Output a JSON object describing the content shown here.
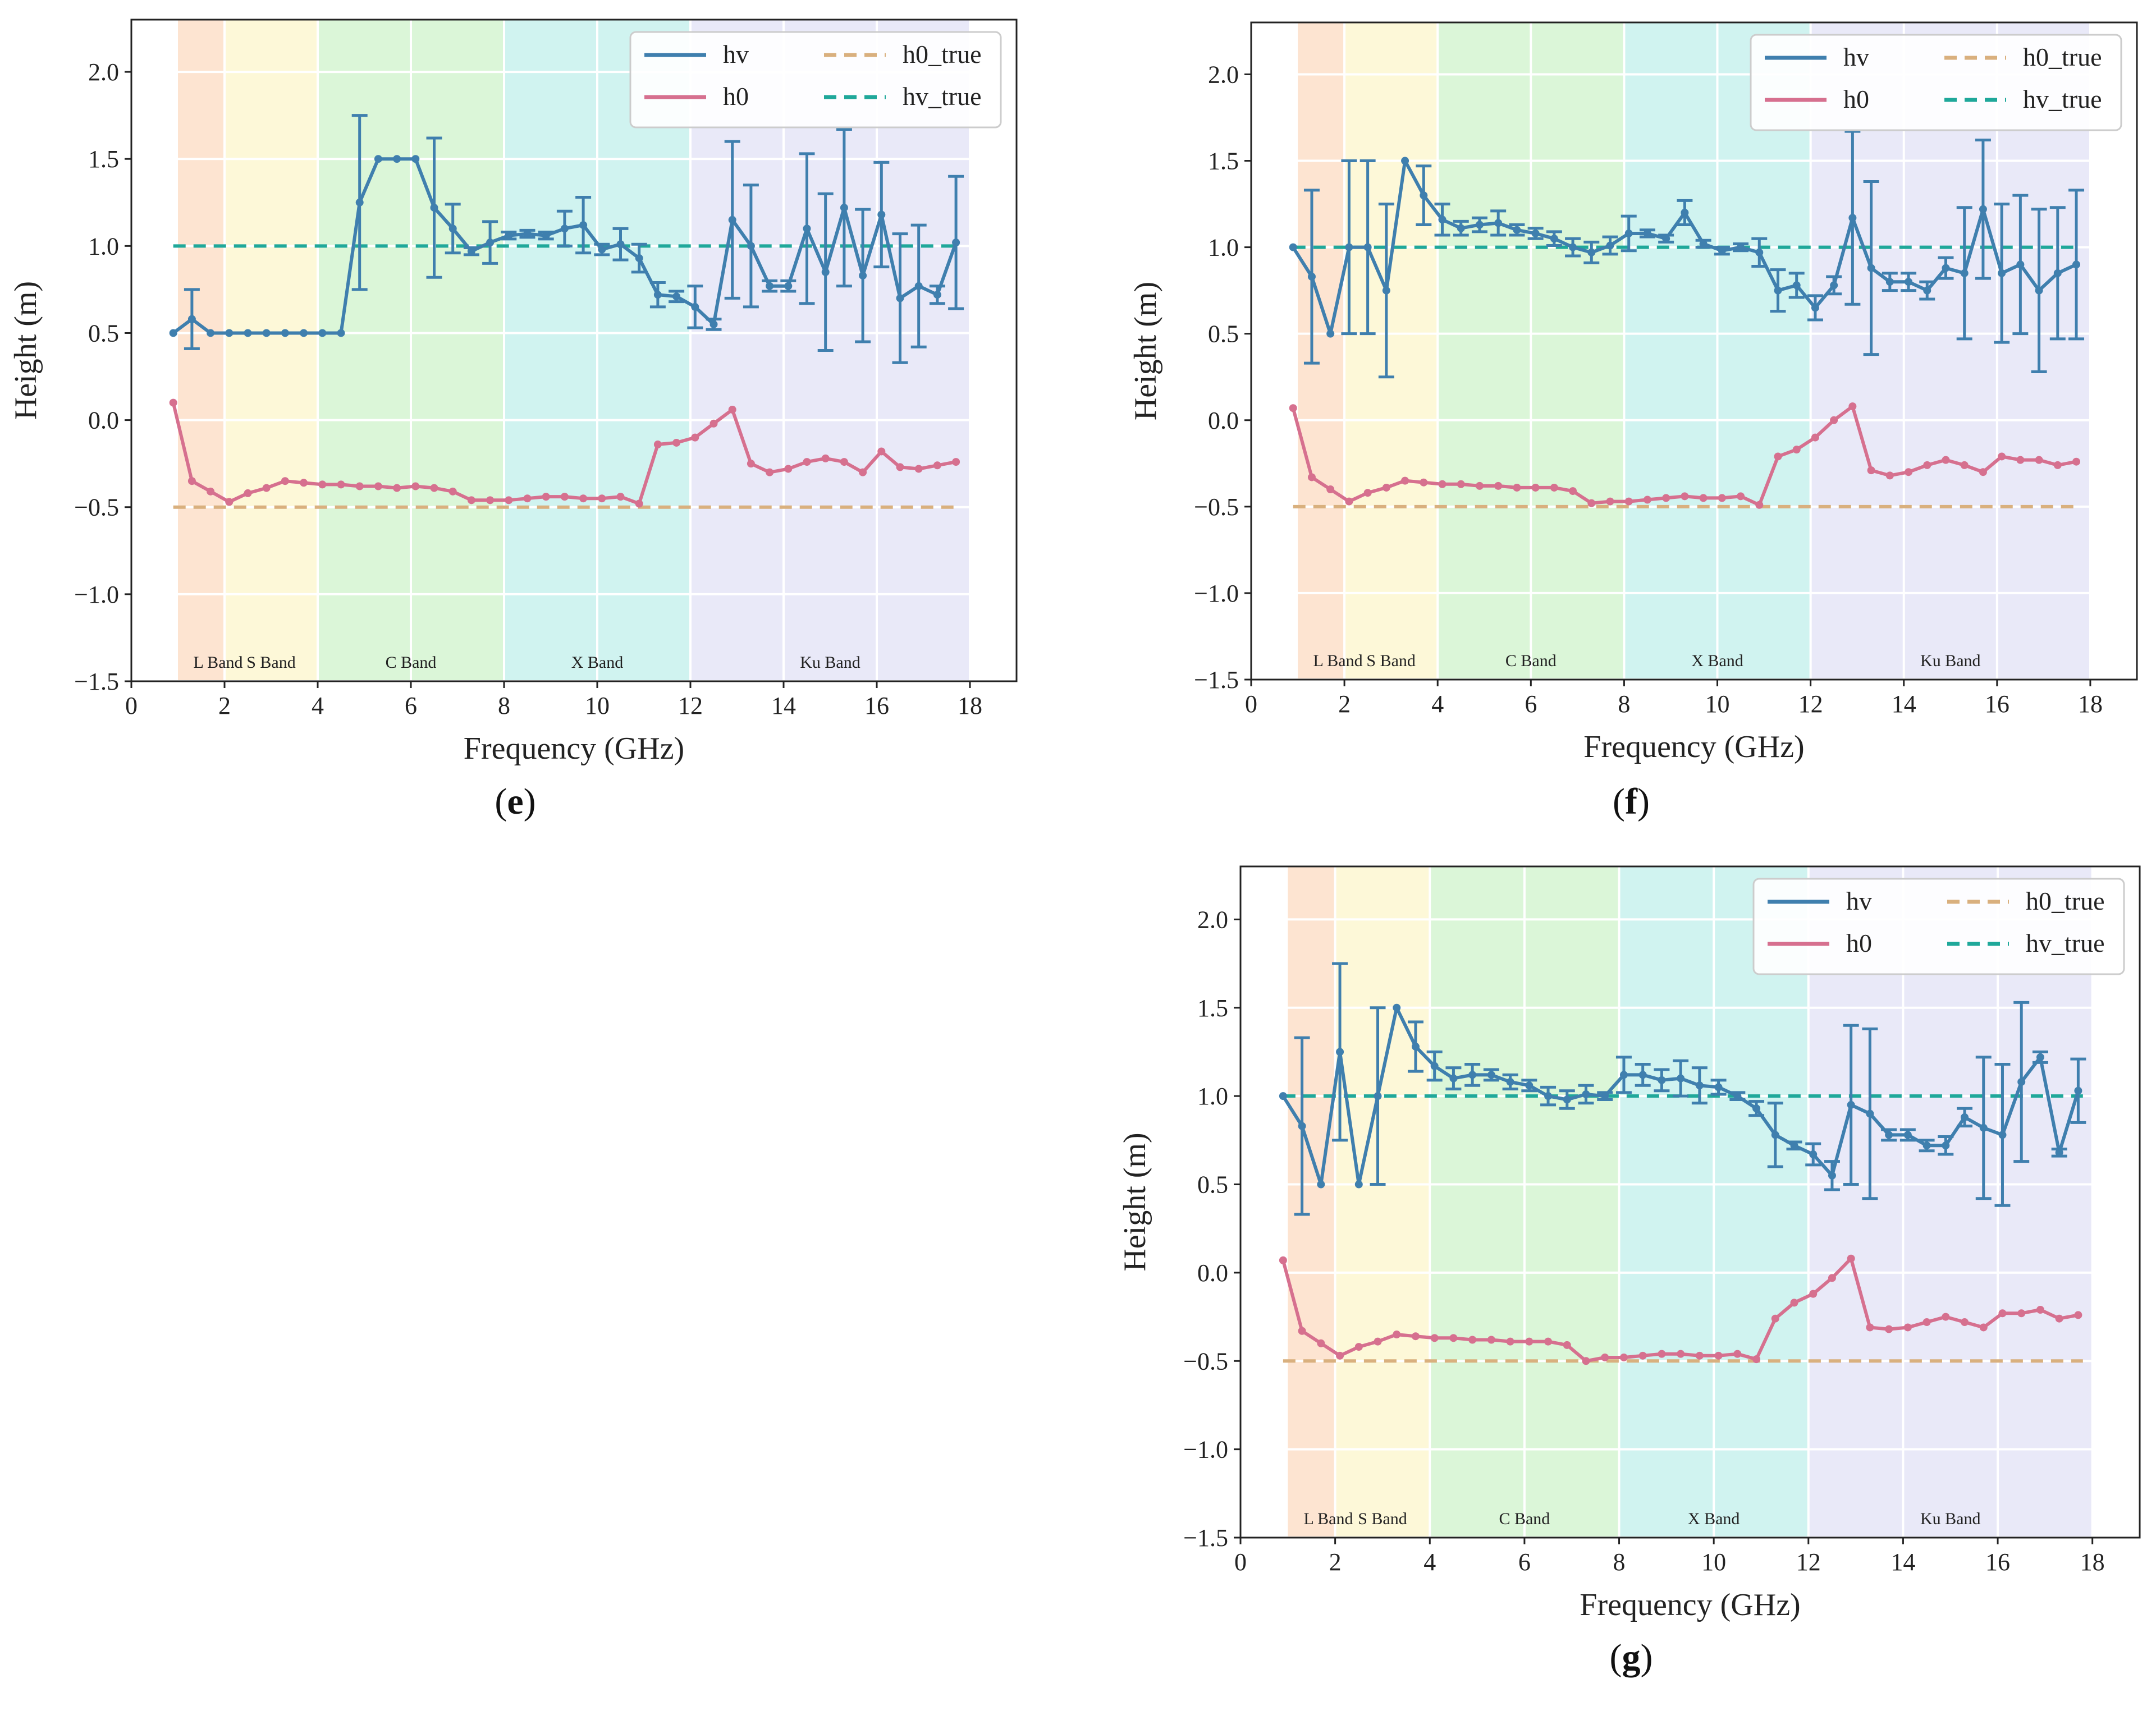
{
  "figure": {
    "description_text": "",
    "colors": {
      "hv": "#3f7fae",
      "h0": "#d6708f",
      "h0_true": "#d9b07e",
      "hv_true": "#1fa89a",
      "grid": "#ffffff",
      "bands": [
        "#fde3cf",
        "#fdf8d6",
        "#d9f5d6",
        "#cdf2ef",
        "#e8e8f8"
      ]
    }
  },
  "chart_data": [
    {
      "panel": "e",
      "type": "line",
      "xlabel": "Frequency (GHz)",
      "ylabel": "Height (m)",
      "xlim": [
        0,
        19
      ],
      "ylim": [
        -1.5,
        2.3
      ],
      "xticks": [
        "0",
        "2",
        "4",
        "6",
        "8",
        "10",
        "12",
        "14",
        "16",
        "18"
      ],
      "yticks": [
        "−1.5",
        "−1.0",
        "−0.5",
        "0.0",
        "0.5",
        "1.0",
        "1.5",
        "2.0"
      ],
      "bands": [
        {
          "label": "L Band",
          "from": 1,
          "to": 2
        },
        {
          "label": "S Band",
          "from": 2,
          "to": 4
        },
        {
          "label": "C Band",
          "from": 4,
          "to": 8
        },
        {
          "label": "X Band",
          "from": 8,
          "to": 12
        },
        {
          "label": "Ku Band",
          "from": 12,
          "to": 18
        }
      ],
      "legend": {
        "position": "top-right",
        "entries": [
          "hv",
          "h0",
          "h0_true",
          "hv_true"
        ]
      },
      "references": {
        "h0_true": -0.5,
        "hv_true": 1.0,
        "x_range": [
          0.9,
          17.8
        ]
      },
      "series": [
        {
          "name": "hv",
          "x": [
            0.9,
            1.3,
            1.7,
            2.1,
            2.5,
            2.9,
            3.3,
            3.7,
            4.1,
            4.5,
            4.9,
            5.3,
            5.7,
            6.1,
            6.5,
            6.9,
            7.3,
            7.7,
            8.1,
            8.5,
            8.9,
            9.3,
            9.7,
            10.1,
            10.5,
            10.9,
            11.3,
            11.7,
            12.1,
            12.5,
            12.9,
            13.3,
            13.7,
            14.1,
            14.5,
            14.9,
            15.3,
            15.7,
            16.1,
            16.5,
            16.9,
            17.3,
            17.7
          ],
          "y": [
            0.5,
            0.58,
            0.5,
            0.5,
            0.5,
            0.5,
            0.5,
            0.5,
            0.5,
            0.5,
            1.25,
            1.5,
            1.5,
            1.5,
            1.22,
            1.1,
            0.97,
            1.02,
            1.06,
            1.07,
            1.06,
            1.1,
            1.12,
            0.98,
            1.01,
            0.93,
            0.72,
            0.71,
            0.65,
            0.55,
            1.15,
            1.0,
            0.77,
            0.77,
            1.1,
            0.85,
            1.22,
            0.83,
            1.18,
            0.7,
            0.77,
            0.72,
            1.02
          ],
          "err": [
            0,
            0.17,
            0,
            0,
            0,
            0,
            0,
            0,
            0,
            0,
            0.5,
            0,
            0,
            0,
            0.4,
            0.14,
            0.02,
            0.12,
            0.02,
            0.02,
            0.02,
            0.1,
            0.16,
            0.03,
            0.09,
            0.08,
            0.07,
            0.03,
            0.12,
            0.03,
            0.45,
            0.35,
            0.03,
            0.03,
            0.43,
            0.45,
            0.45,
            0.38,
            0.3,
            0.37,
            0.35,
            0.05,
            0.38
          ]
        },
        {
          "name": "h0",
          "x": [
            0.9,
            1.3,
            1.7,
            2.1,
            2.5,
            2.9,
            3.3,
            3.7,
            4.1,
            4.5,
            4.9,
            5.3,
            5.7,
            6.1,
            6.5,
            6.9,
            7.3,
            7.7,
            8.1,
            8.5,
            8.9,
            9.3,
            9.7,
            10.1,
            10.5,
            10.9,
            11.3,
            11.7,
            12.1,
            12.5,
            12.9,
            13.3,
            13.7,
            14.1,
            14.5,
            14.9,
            15.3,
            15.7,
            16.1,
            16.5,
            16.9,
            17.3,
            17.7
          ],
          "y": [
            0.1,
            -0.35,
            -0.41,
            -0.47,
            -0.42,
            -0.39,
            -0.35,
            -0.36,
            -0.37,
            -0.37,
            -0.38,
            -0.38,
            -0.39,
            -0.38,
            -0.39,
            -0.41,
            -0.46,
            -0.46,
            -0.46,
            -0.45,
            -0.44,
            -0.44,
            -0.45,
            -0.45,
            -0.44,
            -0.48,
            -0.14,
            -0.13,
            -0.1,
            -0.02,
            0.06,
            -0.25,
            -0.3,
            -0.28,
            -0.24,
            -0.22,
            -0.24,
            -0.3,
            -0.18,
            -0.27,
            -0.28,
            -0.26,
            -0.24
          ],
          "err": []
        }
      ]
    },
    {
      "panel": "f",
      "type": "line",
      "xlabel": "Frequency (GHz)",
      "ylabel": "Height (m)",
      "xlim": [
        0,
        19
      ],
      "ylim": [
        -1.5,
        2.3
      ],
      "xticks": [
        "0",
        "2",
        "4",
        "6",
        "8",
        "10",
        "12",
        "14",
        "16",
        "18"
      ],
      "yticks": [
        "−1.5",
        "−1.0",
        "−0.5",
        "0.0",
        "0.5",
        "1.0",
        "1.5",
        "2.0"
      ],
      "bands": [
        {
          "label": "L Band",
          "from": 1,
          "to": 2
        },
        {
          "label": "S Band",
          "from": 2,
          "to": 4
        },
        {
          "label": "C Band",
          "from": 4,
          "to": 8
        },
        {
          "label": "X Band",
          "from": 8,
          "to": 12
        },
        {
          "label": "Ku Band",
          "from": 12,
          "to": 18
        }
      ],
      "legend": {
        "position": "top-right",
        "entries": [
          "hv",
          "h0",
          "h0_true",
          "hv_true"
        ]
      },
      "references": {
        "h0_true": -0.5,
        "hv_true": 1.0,
        "x_range": [
          0.9,
          17.8
        ]
      },
      "series": [
        {
          "name": "hv",
          "x": [
            0.9,
            1.3,
            1.7,
            2.1,
            2.5,
            2.9,
            3.3,
            3.7,
            4.1,
            4.5,
            4.9,
            5.3,
            5.7,
            6.1,
            6.5,
            6.9,
            7.3,
            7.7,
            8.1,
            8.5,
            8.9,
            9.3,
            9.7,
            10.1,
            10.5,
            10.9,
            11.3,
            11.7,
            12.1,
            12.5,
            12.9,
            13.3,
            13.7,
            14.1,
            14.5,
            14.9,
            15.3,
            15.7,
            16.1,
            16.5,
            16.9,
            17.3,
            17.7
          ],
          "y": [
            1.0,
            0.83,
            0.5,
            1.0,
            1.0,
            0.75,
            1.5,
            1.3,
            1.16,
            1.11,
            1.13,
            1.14,
            1.1,
            1.08,
            1.05,
            1.0,
            0.97,
            1.01,
            1.08,
            1.08,
            1.05,
            1.2,
            1.02,
            0.98,
            1.0,
            0.97,
            0.75,
            0.78,
            0.65,
            0.78,
            1.17,
            0.88,
            0.8,
            0.8,
            0.75,
            0.88,
            0.85,
            1.22,
            0.85,
            0.9,
            0.75,
            0.85,
            0.9
          ],
          "err": [
            0,
            0.5,
            0,
            0.5,
            0.5,
            0.5,
            0,
            0.17,
            0.09,
            0.04,
            0.04,
            0.07,
            0.03,
            0.03,
            0.04,
            0.05,
            0.06,
            0.05,
            0.1,
            0.02,
            0.02,
            0.07,
            0.02,
            0.02,
            0.02,
            0.08,
            0.12,
            0.07,
            0.07,
            0.05,
            0.5,
            0.5,
            0.05,
            0.05,
            0.05,
            0.06,
            0.38,
            0.4,
            0.4,
            0.4,
            0.47,
            0.38,
            0.43
          ]
        },
        {
          "name": "h0",
          "x": [
            0.9,
            1.3,
            1.7,
            2.1,
            2.5,
            2.9,
            3.3,
            3.7,
            4.1,
            4.5,
            4.9,
            5.3,
            5.7,
            6.1,
            6.5,
            6.9,
            7.3,
            7.7,
            8.1,
            8.5,
            8.9,
            9.3,
            9.7,
            10.1,
            10.5,
            10.9,
            11.3,
            11.7,
            12.1,
            12.5,
            12.9,
            13.3,
            13.7,
            14.1,
            14.5,
            14.9,
            15.3,
            15.7,
            16.1,
            16.5,
            16.9,
            17.3,
            17.7
          ],
          "y": [
            0.07,
            -0.33,
            -0.4,
            -0.47,
            -0.42,
            -0.39,
            -0.35,
            -0.36,
            -0.37,
            -0.37,
            -0.38,
            -0.38,
            -0.39,
            -0.39,
            -0.39,
            -0.41,
            -0.48,
            -0.47,
            -0.47,
            -0.46,
            -0.45,
            -0.44,
            -0.45,
            -0.45,
            -0.44,
            -0.49,
            -0.21,
            -0.17,
            -0.1,
            0.0,
            0.08,
            -0.29,
            -0.32,
            -0.3,
            -0.26,
            -0.23,
            -0.26,
            -0.3,
            -0.21,
            -0.23,
            -0.23,
            -0.26,
            -0.24
          ],
          "err": []
        }
      ]
    },
    {
      "panel": "g",
      "type": "line",
      "xlabel": "Frequency (GHz)",
      "ylabel": "Height (m)",
      "xlim": [
        0,
        19
      ],
      "ylim": [
        -1.5,
        2.3
      ],
      "xticks": [
        "0",
        "2",
        "4",
        "6",
        "8",
        "10",
        "12",
        "14",
        "16",
        "18"
      ],
      "yticks": [
        "−1.5",
        "−1.0",
        "−0.5",
        "0.0",
        "0.5",
        "1.0",
        "1.5",
        "2.0"
      ],
      "bands": [
        {
          "label": "L Band",
          "from": 1,
          "to": 2
        },
        {
          "label": "S Band",
          "from": 2,
          "to": 4
        },
        {
          "label": "C Band",
          "from": 4,
          "to": 8
        },
        {
          "label": "X Band",
          "from": 8,
          "to": 12
        },
        {
          "label": "Ku Band",
          "from": 12,
          "to": 18
        }
      ],
      "legend": {
        "position": "top-right",
        "entries": [
          "hv",
          "h0",
          "h0_true",
          "hv_true"
        ]
      },
      "references": {
        "h0_true": -0.5,
        "hv_true": 1.0,
        "x_range": [
          0.9,
          17.8
        ]
      },
      "series": [
        {
          "name": "hv",
          "x": [
            0.9,
            1.3,
            1.7,
            2.1,
            2.5,
            2.9,
            3.3,
            3.7,
            4.1,
            4.5,
            4.9,
            5.3,
            5.7,
            6.1,
            6.5,
            6.9,
            7.3,
            7.7,
            8.1,
            8.5,
            8.9,
            9.3,
            9.7,
            10.1,
            10.5,
            10.9,
            11.3,
            11.7,
            12.1,
            12.5,
            12.9,
            13.3,
            13.7,
            14.1,
            14.5,
            14.9,
            15.3,
            15.7,
            16.1,
            16.5,
            16.9,
            17.3,
            17.7
          ],
          "y": [
            1.0,
            0.83,
            0.5,
            1.25,
            0.5,
            1.0,
            1.5,
            1.28,
            1.17,
            1.1,
            1.12,
            1.12,
            1.08,
            1.06,
            1.0,
            0.98,
            1.01,
            1.0,
            1.12,
            1.12,
            1.09,
            1.1,
            1.06,
            1.05,
            1.0,
            0.93,
            0.78,
            0.72,
            0.67,
            0.55,
            0.95,
            0.9,
            0.78,
            0.78,
            0.72,
            0.72,
            0.88,
            0.82,
            0.78,
            1.08,
            1.22,
            0.68,
            1.03
          ],
          "err": [
            0,
            0.5,
            0,
            0.5,
            0,
            0.5,
            0,
            0.14,
            0.08,
            0.06,
            0.06,
            0.03,
            0.04,
            0.03,
            0.05,
            0.05,
            0.05,
            0.02,
            0.1,
            0.06,
            0.06,
            0.1,
            0.1,
            0.04,
            0.02,
            0.04,
            0.18,
            0.02,
            0.06,
            0.08,
            0.45,
            0.48,
            0.03,
            0.03,
            0.03,
            0.05,
            0.05,
            0.4,
            0.4,
            0.45,
            0.03,
            0.02,
            0.18
          ]
        },
        {
          "name": "h0",
          "x": [
            0.9,
            1.3,
            1.7,
            2.1,
            2.5,
            2.9,
            3.3,
            3.7,
            4.1,
            4.5,
            4.9,
            5.3,
            5.7,
            6.1,
            6.5,
            6.9,
            7.3,
            7.7,
            8.1,
            8.5,
            8.9,
            9.3,
            9.7,
            10.1,
            10.5,
            10.9,
            11.3,
            11.7,
            12.1,
            12.5,
            12.9,
            13.3,
            13.7,
            14.1,
            14.5,
            14.9,
            15.3,
            15.7,
            16.1,
            16.5,
            16.9,
            17.3,
            17.7
          ],
          "y": [
            0.07,
            -0.33,
            -0.4,
            -0.47,
            -0.42,
            -0.39,
            -0.35,
            -0.36,
            -0.37,
            -0.37,
            -0.38,
            -0.38,
            -0.39,
            -0.39,
            -0.39,
            -0.41,
            -0.5,
            -0.48,
            -0.48,
            -0.47,
            -0.46,
            -0.46,
            -0.47,
            -0.47,
            -0.46,
            -0.49,
            -0.26,
            -0.17,
            -0.12,
            -0.03,
            0.08,
            -0.31,
            -0.32,
            -0.31,
            -0.28,
            -0.25,
            -0.28,
            -0.31,
            -0.23,
            -0.23,
            -0.21,
            -0.26,
            -0.24
          ],
          "err": []
        }
      ]
    }
  ]
}
